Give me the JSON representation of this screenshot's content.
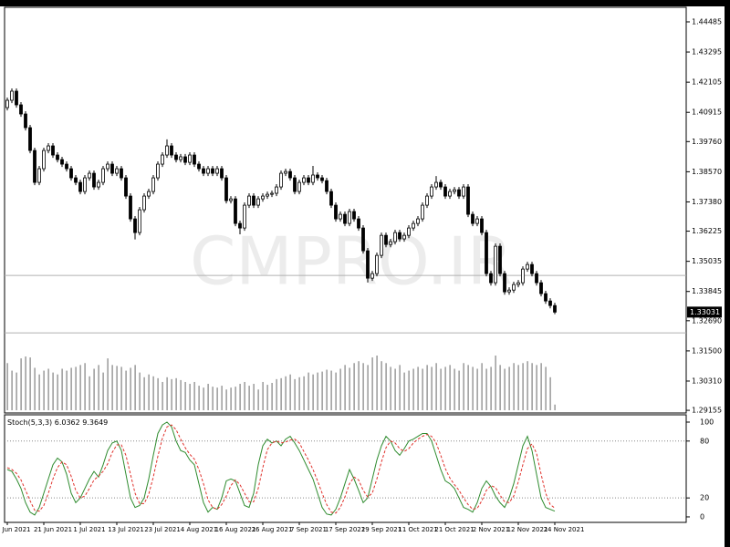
{
  "chart_data": [
    {
      "type": "candlestick",
      "watermark": "CMPRO.IR",
      "categories": [
        "Jun 2021",
        null,
        null,
        null,
        null,
        null,
        null,
        null,
        "21 Jun 2021",
        null,
        null,
        null,
        null,
        null,
        null,
        null,
        "1 Jul 2021",
        null,
        null,
        null,
        null,
        null,
        null,
        null,
        "13 Jul 2021",
        null,
        null,
        null,
        null,
        null,
        null,
        null,
        "23 Jul 2021",
        null,
        null,
        null,
        null,
        null,
        null,
        null,
        "4 Aug 2021",
        null,
        null,
        null,
        null,
        null,
        null,
        null,
        "16 Aug 2021",
        null,
        null,
        null,
        null,
        null,
        null,
        null,
        "26 Aug 2021",
        null,
        null,
        null,
        null,
        null,
        null,
        null,
        "7 Sep 2021",
        null,
        null,
        null,
        null,
        null,
        null,
        null,
        "17 Sep 2021",
        null,
        null,
        null,
        null,
        null,
        null,
        null,
        "29 Sep 2021",
        null,
        null,
        null,
        null,
        null,
        null,
        null,
        "11 Oct 2021",
        null,
        null,
        null,
        null,
        null,
        null,
        null,
        "21 Oct 2021",
        null,
        null,
        null,
        null,
        null,
        null,
        null,
        "2 Nov 2021",
        null,
        null,
        null,
        null,
        null,
        null,
        null,
        "12 Nov 2021",
        null,
        null,
        null,
        null,
        null,
        null,
        null,
        "24 Nov 2021"
      ],
      "open": [
        1.411,
        1.4139,
        1.4175,
        1.4121,
        1.4085,
        1.4031,
        1.3941,
        1.3815,
        1.3869,
        1.3941,
        1.3959,
        1.3923,
        1.3905,
        1.3887,
        1.3869,
        1.3833,
        1.3815,
        1.3779,
        1.3833,
        1.3851,
        1.3797,
        1.3815,
        1.3869,
        1.3887,
        1.3851,
        1.3869,
        1.3833,
        1.3761,
        1.3671,
        1.3617,
        1.3707,
        1.3761,
        1.3779,
        1.3833,
        1.3887,
        1.3923,
        1.3959,
        1.3923,
        1.3905,
        1.3916,
        1.3894,
        1.3923,
        1.3887,
        1.3869,
        1.3851,
        1.3869,
        1.3851,
        1.3869,
        1.3833,
        1.3743,
        1.375,
        1.3653,
        1.3635,
        1.3725,
        1.3761,
        1.3725,
        1.375,
        1.3761,
        1.3768,
        1.3772,
        1.3797,
        1.3851,
        1.3858,
        1.3833,
        1.3779,
        1.3815,
        1.3833,
        1.3815,
        1.3844,
        1.3833,
        1.3822,
        1.3779,
        1.3725,
        1.3671,
        1.3689,
        1.3653,
        1.37,
        1.3671,
        1.3635,
        1.3545,
        1.3437,
        1.3455,
        1.3527,
        1.3606,
        1.357,
        1.3581,
        1.3617,
        1.3592,
        1.3606,
        1.3635,
        1.3653,
        1.3671,
        1.3725,
        1.3761,
        1.3797,
        1.3815,
        1.3797,
        1.3761,
        1.3779,
        1.3786,
        1.3761,
        1.3797,
        1.3689,
        1.3653,
        1.3671,
        1.3617,
        1.3455,
        1.3419,
        1.3563,
        1.3455,
        1.3383,
        1.339,
        1.3412,
        1.3419,
        1.3473,
        1.3491,
        1.3455,
        1.3419,
        1.3376,
        1.3347,
        1.3329
      ],
      "high": [
        1.415,
        1.4186,
        1.4186,
        1.4132,
        1.4096,
        1.4042,
        1.3952,
        1.388,
        1.3952,
        1.397,
        1.397,
        1.3934,
        1.3916,
        1.3898,
        1.388,
        1.3844,
        1.3826,
        1.3844,
        1.3862,
        1.3862,
        1.3826,
        1.388,
        1.3898,
        1.3898,
        1.388,
        1.388,
        1.3844,
        1.3772,
        1.3682,
        1.3718,
        1.3772,
        1.379,
        1.3844,
        1.3898,
        1.3934,
        1.3985,
        1.397,
        1.3934,
        1.3927,
        1.3927,
        1.3934,
        1.3934,
        1.3898,
        1.388,
        1.388,
        1.388,
        1.388,
        1.388,
        1.3844,
        1.3761,
        1.3761,
        1.3664,
        1.3736,
        1.3772,
        1.3772,
        1.3761,
        1.3772,
        1.3779,
        1.3783,
        1.3808,
        1.3862,
        1.3869,
        1.3869,
        1.3844,
        1.3826,
        1.3844,
        1.3844,
        1.388,
        1.3855,
        1.3844,
        1.3833,
        1.379,
        1.3736,
        1.37,
        1.37,
        1.3711,
        1.3711,
        1.3682,
        1.3646,
        1.3556,
        1.3466,
        1.3538,
        1.3617,
        1.3617,
        1.3592,
        1.3628,
        1.3628,
        1.3617,
        1.3646,
        1.3664,
        1.3682,
        1.3736,
        1.3772,
        1.3808,
        1.384,
        1.3826,
        1.3808,
        1.379,
        1.3797,
        1.3797,
        1.3808,
        1.3808,
        1.37,
        1.3682,
        1.3682,
        1.3628,
        1.3466,
        1.3574,
        1.3574,
        1.3466,
        1.3401,
        1.3423,
        1.343,
        1.3484,
        1.3502,
        1.3502,
        1.3466,
        1.343,
        1.3387,
        1.3358,
        1.334
      ],
      "low": [
        1.4099,
        1.4128,
        1.411,
        1.4074,
        1.402,
        1.393,
        1.3804,
        1.3804,
        1.3858,
        1.393,
        1.3912,
        1.3894,
        1.3876,
        1.3858,
        1.3822,
        1.3804,
        1.3768,
        1.3768,
        1.3822,
        1.3786,
        1.3786,
        1.3804,
        1.3858,
        1.384,
        1.384,
        1.3822,
        1.375,
        1.366,
        1.359,
        1.3606,
        1.3696,
        1.375,
        1.3768,
        1.3822,
        1.3876,
        1.3912,
        1.3912,
        1.3894,
        1.3894,
        1.3883,
        1.3883,
        1.3876,
        1.3858,
        1.384,
        1.384,
        1.384,
        1.384,
        1.3822,
        1.3732,
        1.3732,
        1.3642,
        1.361,
        1.3624,
        1.3714,
        1.3714,
        1.3714,
        1.3739,
        1.375,
        1.3757,
        1.3761,
        1.3786,
        1.384,
        1.3822,
        1.3768,
        1.3768,
        1.3804,
        1.3804,
        1.3804,
        1.3822,
        1.3811,
        1.3768,
        1.3714,
        1.366,
        1.366,
        1.3642,
        1.3642,
        1.366,
        1.3624,
        1.3534,
        1.342,
        1.3426,
        1.3444,
        1.3516,
        1.3559,
        1.3559,
        1.357,
        1.3581,
        1.3581,
        1.3595,
        1.3624,
        1.3642,
        1.366,
        1.3714,
        1.375,
        1.3786,
        1.3786,
        1.375,
        1.375,
        1.3768,
        1.375,
        1.375,
        1.3678,
        1.3642,
        1.3642,
        1.3606,
        1.3444,
        1.3408,
        1.3408,
        1.3444,
        1.3372,
        1.3372,
        1.3379,
        1.3401,
        1.3408,
        1.3462,
        1.3444,
        1.3408,
        1.3365,
        1.3336,
        1.3318,
        1.3295
      ],
      "close": [
        1.4139,
        1.4175,
        1.4121,
        1.4085,
        1.4031,
        1.3941,
        1.3815,
        1.3869,
        1.3941,
        1.3959,
        1.3923,
        1.3905,
        1.3887,
        1.3869,
        1.3833,
        1.3815,
        1.3779,
        1.3833,
        1.3851,
        1.3797,
        1.3815,
        1.3869,
        1.3887,
        1.3851,
        1.3869,
        1.3833,
        1.3761,
        1.3671,
        1.3617,
        1.3707,
        1.3761,
        1.3779,
        1.3833,
        1.3887,
        1.3923,
        1.3959,
        1.3923,
        1.3905,
        1.3916,
        1.3894,
        1.3923,
        1.3887,
        1.3869,
        1.3851,
        1.3869,
        1.3851,
        1.3869,
        1.3833,
        1.3743,
        1.375,
        1.3653,
        1.3635,
        1.3725,
        1.3761,
        1.3725,
        1.375,
        1.3761,
        1.3768,
        1.3772,
        1.3797,
        1.3851,
        1.3858,
        1.3833,
        1.3779,
        1.3815,
        1.3833,
        1.3815,
        1.3844,
        1.3833,
        1.3822,
        1.3779,
        1.3725,
        1.3671,
        1.3689,
        1.3653,
        1.37,
        1.3671,
        1.3635,
        1.3545,
        1.3437,
        1.3455,
        1.3527,
        1.3606,
        1.357,
        1.3581,
        1.3617,
        1.3592,
        1.3606,
        1.3635,
        1.3653,
        1.3671,
        1.3725,
        1.3761,
        1.3797,
        1.3815,
        1.3797,
        1.3761,
        1.3779,
        1.3786,
        1.3761,
        1.3797,
        1.3689,
        1.3653,
        1.3671,
        1.3617,
        1.3455,
        1.3419,
        1.3563,
        1.3455,
        1.3383,
        1.339,
        1.3412,
        1.3419,
        1.3473,
        1.3491,
        1.3455,
        1.3419,
        1.3376,
        1.3347,
        1.3329,
        1.33031
      ],
      "volume": [
        50,
        42,
        40,
        55,
        57,
        56,
        45,
        38,
        42,
        44,
        40,
        38,
        44,
        42,
        45,
        46,
        48,
        50,
        36,
        44,
        48,
        40,
        55,
        48,
        47,
        46,
        42,
        45,
        48,
        40,
        35,
        38,
        36,
        34,
        30,
        35,
        33,
        34,
        32,
        30,
        28,
        30,
        26,
        24,
        28,
        25,
        24,
        26,
        22,
        24,
        25,
        28,
        30,
        26,
        28,
        22,
        30,
        27,
        29,
        33,
        34,
        36,
        38,
        33,
        35,
        36,
        40,
        38,
        40,
        41,
        43,
        42,
        40,
        44,
        48,
        45,
        50,
        52,
        50,
        48,
        56,
        58,
        52,
        50,
        46,
        44,
        48,
        40,
        42,
        44,
        46,
        44,
        48,
        46,
        50,
        44,
        46,
        48,
        44,
        42,
        50,
        48,
        46,
        44,
        50,
        44,
        46,
        58,
        48,
        44,
        46,
        50,
        48,
        50,
        52,
        50,
        48,
        50,
        46,
        35,
        6
      ],
      "ylim": [
        1.2905,
        1.4506
      ],
      "yticks": [
        1.44485,
        1.43295,
        1.42105,
        1.40915,
        {
          "value": 1.3976,
          "label": "1.39760"
        },
        {
          "value": 1.3857,
          "label": "1.38570"
        },
        {
          "value": 1.3738,
          "label": "1.37380"
        },
        1.36225,
        1.35035,
        1.33845,
        {
          "value": 1.3269,
          "label": "1.32690"
        },
        {
          "value": 1.315,
          "label": "1.31500"
        },
        {
          "value": 1.3031,
          "label": "1.30310"
        },
        1.29155
      ],
      "hlines": [
        1.3448,
        1.3221
      ],
      "bull_color": "#ffffff",
      "bear_color": "#000000",
      "wick_color": "#000000",
      "volume_color": "#808080"
    },
    {
      "type": "line",
      "title": "Stoch(5,3,3)",
      "series": [
        {
          "color": "#2e8b2e",
          "dash": false,
          "values": [
            50,
            48,
            40,
            30,
            15,
            5,
            2,
            10,
            25,
            40,
            55,
            62,
            58,
            45,
            25,
            15,
            20,
            30,
            40,
            48,
            42,
            55,
            70,
            78,
            80,
            70,
            45,
            20,
            10,
            12,
            20,
            40,
            65,
            88,
            97,
            100,
            95,
            80,
            70,
            68,
            60,
            55,
            35,
            15,
            5,
            10,
            8,
            20,
            38,
            40,
            38,
            25,
            12,
            10,
            25,
            55,
            75,
            82,
            78,
            80,
            75,
            82,
            85,
            78,
            70,
            60,
            50,
            40,
            25,
            10,
            3,
            2,
            8,
            20,
            35,
            50,
            40,
            28,
            15,
            20,
            40,
            60,
            75,
            85,
            80,
            70,
            65,
            72,
            80,
            82,
            85,
            88,
            88,
            80,
            65,
            50,
            38,
            35,
            30,
            20,
            10,
            8,
            5,
            15,
            30,
            38,
            32,
            22,
            15,
            10,
            20,
            35,
            55,
            75,
            85,
            70,
            45,
            20,
            10,
            8,
            6.0362
          ]
        },
        {
          "color": "#e0302a",
          "dash": true,
          "values": [
            52,
            50,
            46,
            39,
            28,
            17,
            7,
            6,
            12,
            25,
            40,
            52,
            58,
            55,
            43,
            28,
            20,
            22,
            30,
            39,
            43,
            48,
            56,
            68,
            76,
            76,
            65,
            45,
            25,
            14,
            14,
            24,
            42,
            64,
            83,
            95,
            97,
            92,
            82,
            73,
            66,
            61,
            50,
            35,
            18,
            10,
            8,
            13,
            22,
            33,
            39,
            34,
            25,
            16,
            16,
            30,
            52,
            71,
            78,
            80,
            78,
            79,
            81,
            82,
            78,
            69,
            60,
            50,
            38,
            25,
            13,
            5,
            4,
            10,
            21,
            35,
            42,
            39,
            28,
            21,
            25,
            40,
            58,
            73,
            80,
            78,
            72,
            69,
            72,
            78,
            82,
            85,
            87,
            85,
            78,
            65,
            51,
            41,
            34,
            28,
            20,
            13,
            8,
            9,
            17,
            28,
            33,
            31,
            23,
            16,
            15,
            22,
            37,
            55,
            72,
            77,
            67,
            45,
            25,
            13,
            9.3649
          ]
        }
      ],
      "ylim": [
        -5.8,
        107.7
      ],
      "yticks": [
        100,
        80,
        20,
        0
      ],
      "levels": [
        80,
        20
      ]
    }
  ]
}
